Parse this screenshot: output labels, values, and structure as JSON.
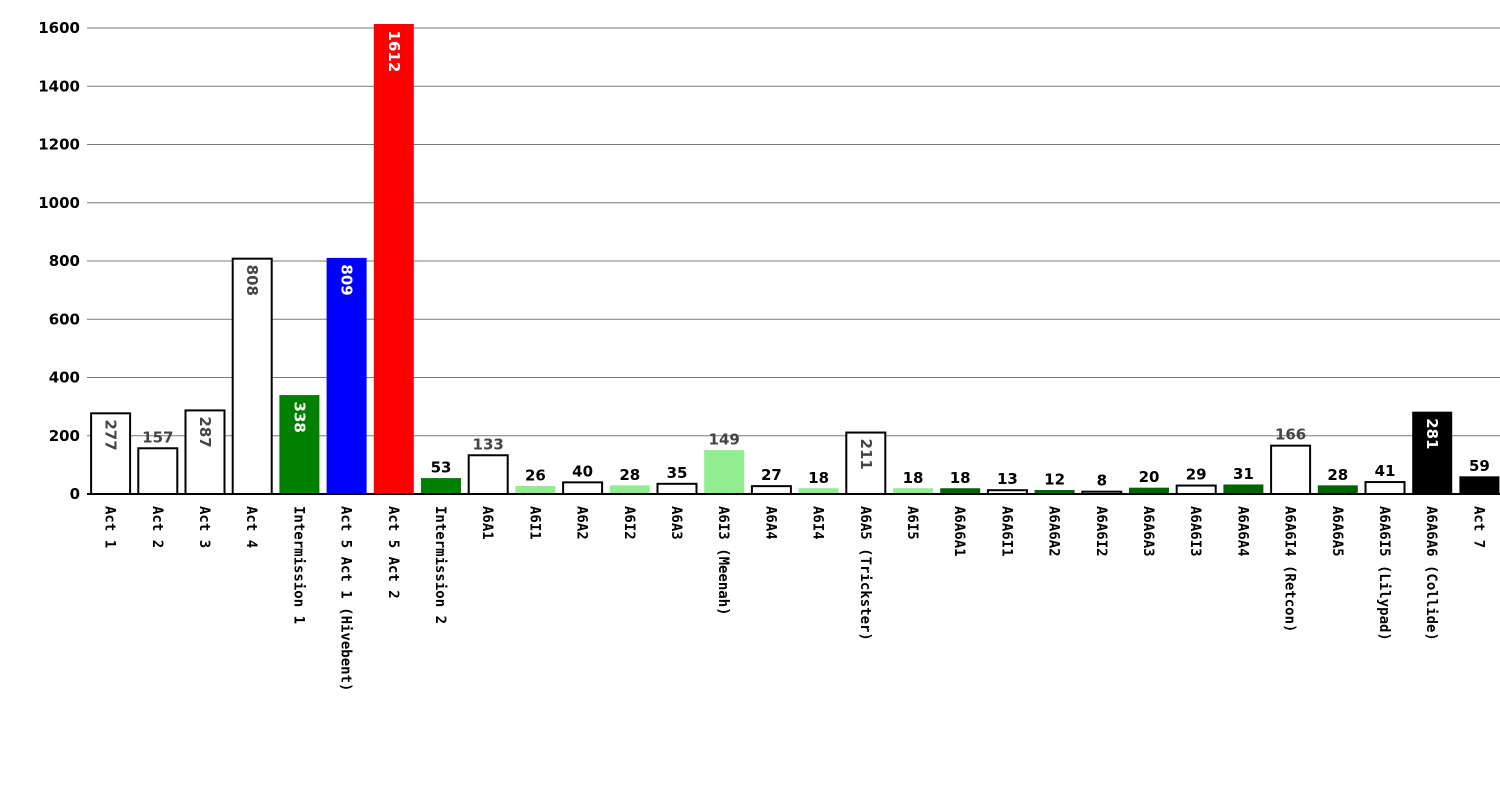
{
  "chart_data": {
    "type": "bar",
    "title": "",
    "xlabel": "",
    "ylabel": "",
    "ylim": [
      0,
      1600
    ],
    "yticks": [
      0,
      200,
      400,
      600,
      800,
      1000,
      1200,
      1400,
      1600
    ],
    "grid": true,
    "legend": "none",
    "categories": [
      "Act 1",
      "Act 2",
      "Act 3",
      "Act 4",
      "Intermission 1",
      "Act 5 Act 1 (Hivebent)",
      "Act 5 Act 2",
      "Intermission 2",
      "A6A1",
      "A6I1",
      "A6A2",
      "A6I2",
      "A6A3",
      "A6I3 (Meenah)",
      "A6A4",
      "A6I4",
      "A6A5 (Trickster)",
      "A6I5",
      "A6A6A1",
      "A6A6I1",
      "A6A6A2",
      "A6A6I2",
      "A6A6A3",
      "A6A6I3",
      "A6A6A4",
      "A6A6I4 (Retcon)",
      "A6A6A5",
      "A6A6I5 (Lilypad)",
      "A6A6A6 (Collide)",
      "Act 7"
    ],
    "values": [
      277,
      157,
      287,
      808,
      338,
      809,
      1612,
      53,
      133,
      26,
      40,
      28,
      35,
      149,
      27,
      18,
      211,
      18,
      18,
      13,
      12,
      8,
      20,
      29,
      31,
      166,
      28,
      41,
      281,
      59
    ],
    "colors": [
      "#ffffff",
      "#ffffff",
      "#ffffff",
      "#ffffff",
      "#008000",
      "#0000ff",
      "#ff0000",
      "#008000",
      "#ffffff",
      "#90ee90",
      "#ffffff",
      "#90ee90",
      "#ffffff",
      "#90ee90",
      "#ffffff",
      "#90ee90",
      "#ffffff",
      "#90ee90",
      "#006400",
      "#ffffff",
      "#006400",
      "#ffffff",
      "#006400",
      "#ffffff",
      "#006400",
      "#ffffff",
      "#006400",
      "#ffffff",
      "#000000",
      "#000000"
    ],
    "label_colors": [
      "#444444",
      "#444444",
      "#444444",
      "#444444",
      "#ffffff",
      "#ffffff",
      "#ffffff",
      "#000000",
      "#444444",
      "#000000",
      "#000000",
      "#000000",
      "#000000",
      "#444444",
      "#000000",
      "#000000",
      "#444444",
      "#000000",
      "#000000",
      "#000000",
      "#000000",
      "#000000",
      "#000000",
      "#000000",
      "#000000",
      "#444444",
      "#000000",
      "#000000",
      "#ffffff",
      "#000000"
    ]
  }
}
